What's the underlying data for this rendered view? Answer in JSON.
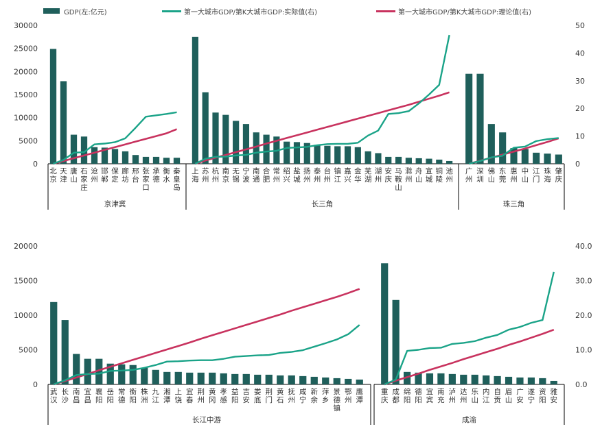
{
  "legend": {
    "bar": "GDP(左:亿元)",
    "actual": "第一大城市GDP/第K大城市GDP:实际值(右)",
    "theory": "第一大城市GDP/第K大城市GDP:理论值(右)"
  },
  "colors": {
    "bar": "#1f5f5b",
    "actual": "#1aa388",
    "theory": "#c8325e",
    "axis": "#000000",
    "text": "#333333"
  },
  "chart_data": [
    {
      "type": "bar+line",
      "panel": "top",
      "left_ticks": [
        "30000",
        "25000",
        "20000",
        "15000",
        "10000",
        "5000",
        "0"
      ],
      "right_ticks": [
        "50",
        "40",
        "30",
        "20",
        "10",
        "0"
      ],
      "ylim_left": [
        0,
        30000
      ],
      "ylim_right": [
        0,
        50
      ],
      "groups": [
        {
          "name": "京津冀",
          "cities": [
            [
              "北",
              "京"
            ],
            [
              "天",
              "津"
            ],
            [
              "唐",
              "山"
            ],
            [
              "石",
              "家",
              "庄"
            ],
            [
              "沧",
              "州"
            ],
            [
              "邯",
              "郸"
            ],
            [
              "保",
              "定"
            ],
            [
              "廊",
              "坊"
            ],
            [
              "邢",
              "台"
            ],
            [
              "张",
              "家",
              "口"
            ],
            [
              "承",
              "德"
            ],
            [
              "衡",
              "水"
            ],
            [
              "秦",
              "皇",
              "岛"
            ]
          ],
          "gdp": [
            24900,
            17900,
            6300,
            5900,
            3600,
            3500,
            3200,
            2700,
            1900,
            1500,
            1500,
            1300,
            1300
          ],
          "actual": [
            0,
            1.4,
            4,
            4.2,
            7,
            7.3,
            7.8,
            9.2,
            13,
            17,
            17.5,
            18,
            18.6
          ],
          "theory": [
            0,
            1,
            2,
            3,
            4,
            5,
            6,
            7,
            8,
            9,
            10,
            11,
            12.5
          ]
        },
        {
          "name": "长三角",
          "cities": [
            [
              "上",
              "海"
            ],
            [
              "苏",
              "州"
            ],
            [
              "杭",
              "州"
            ],
            [
              "南",
              "京"
            ],
            [
              "无",
              "锡"
            ],
            [
              "宁",
              "波"
            ],
            [
              "南",
              "通"
            ],
            [
              "合",
              "肥"
            ],
            [
              "常",
              "州"
            ],
            [
              "绍",
              "兴"
            ],
            [
              "盐",
              "城"
            ],
            [
              "扬",
              "州"
            ],
            [
              "泰",
              "州"
            ],
            [
              "台",
              "州"
            ],
            [
              "镇",
              "江"
            ],
            [
              "嘉",
              "兴"
            ],
            [
              "金",
              "华"
            ],
            [
              "芜",
              "湖"
            ],
            [
              "湖",
              "州"
            ],
            [
              "安",
              "庆"
            ],
            [
              "马",
              "鞍",
              "山"
            ],
            [
              "滁",
              "州"
            ],
            [
              "舟",
              "山"
            ],
            [
              "宣",
              "城"
            ],
            [
              "铜",
              "陵"
            ],
            [
              "池",
              "州"
            ]
          ],
          "gdp": [
            27500,
            15500,
            11100,
            10600,
            9300,
            8600,
            6800,
            6300,
            5900,
            4800,
            4700,
            4500,
            4100,
            3900,
            3800,
            3800,
            3600,
            2700,
            2300,
            1500,
            1500,
            1300,
            1200,
            1100,
            900,
            600
          ],
          "actual": [
            0,
            1.8,
            2.5,
            2.6,
            3,
            3.2,
            4,
            4.4,
            4.7,
            5.7,
            5.9,
            6.1,
            6.7,
            7.1,
            7.2,
            7.2,
            7.6,
            10.2,
            12,
            18,
            18.3,
            19,
            21.8,
            25,
            28.5,
            46.5
          ],
          "theory": [
            0,
            1.2,
            2.2,
            3.2,
            4.2,
            5.2,
            6.2,
            7.3,
            8.3,
            9.3,
            10.3,
            11.3,
            12.3,
            13.3,
            14.3,
            15.3,
            16.3,
            17.3,
            18.3,
            19.3,
            20.3,
            21.3,
            22.4,
            23.5,
            24.6,
            25.8
          ]
        },
        {
          "name": "珠三角",
          "cities": [
            [
              "广",
              "州"
            ],
            [
              "深",
              "圳"
            ],
            [
              "佛",
              "山"
            ],
            [
              "东",
              "莞"
            ],
            [
              "惠",
              "州"
            ],
            [
              "中",
              "山"
            ],
            [
              "江",
              "门"
            ],
            [
              "珠",
              "海"
            ],
            [
              "肇",
              "庆"
            ]
          ],
          "gdp": [
            19500,
            19500,
            8600,
            6800,
            3400,
            3200,
            2400,
            2200,
            2000
          ],
          "actual": [
            0,
            1,
            2.3,
            2.9,
            5.8,
            6.2,
            8.2,
            8.9,
            9.3
          ],
          "theory": [
            0,
            1.1,
            2.2,
            3.3,
            4.4,
            5.5,
            6.7,
            7.9,
            9.2
          ]
        }
      ]
    },
    {
      "type": "bar+line",
      "panel": "bottom-left",
      "left_ticks": [
        "20000",
        "15000",
        "10000",
        "5000",
        "0"
      ],
      "right_ticks": [],
      "ylim_left": [
        0,
        20000
      ],
      "ylim_right": [
        0,
        40
      ],
      "groups": [
        {
          "name": "长江中游",
          "cities": [
            [
              "武",
              "汉"
            ],
            [
              "长",
              "沙"
            ],
            [
              "南",
              "昌"
            ],
            [
              "宜",
              "昌"
            ],
            [
              "襄",
              "阳"
            ],
            [
              "岳",
              "阳"
            ],
            [
              "常",
              "德"
            ],
            [
              "衡",
              "阳"
            ],
            [
              "株",
              "洲"
            ],
            [
              "九",
              "江"
            ],
            [
              "湘",
              "潭"
            ],
            [
              "上",
              "饶"
            ],
            [
              "宜",
              "春"
            ],
            [
              "荆",
              "州"
            ],
            [
              "黄",
              "冈"
            ],
            [
              "孝",
              "感"
            ],
            [
              "益",
              "阳"
            ],
            [
              "吉",
              "安"
            ],
            [
              "娄",
              "底"
            ],
            [
              "荆",
              "门"
            ],
            [
              "黄",
              "石"
            ],
            [
              "抚",
              "州"
            ],
            [
              "咸",
              "宁"
            ],
            [
              "新",
              "余"
            ],
            [
              "萍",
              "乡"
            ],
            [
              "景",
              "德",
              "镇"
            ],
            [
              "鄂",
              "州"
            ],
            [
              "鹰",
              "潭"
            ]
          ],
          "gdp": [
            11900,
            9300,
            4400,
            3700,
            3700,
            3000,
            2900,
            2800,
            2400,
            2100,
            1800,
            1800,
            1700,
            1700,
            1700,
            1600,
            1500,
            1500,
            1400,
            1400,
            1300,
            1300,
            1200,
            1100,
            1000,
            900,
            800,
            700
          ],
          "actual": [
            0,
            1.2,
            2.7,
            3,
            3.1,
            3.9,
            4,
            4.2,
            4.8,
            5.6,
            6.6,
            6.7,
            6.9,
            7,
            7,
            7.4,
            8,
            8.2,
            8.4,
            8.5,
            9.1,
            9.4,
            9.9,
            10.9,
            11.9,
            13,
            14.5,
            17.2
          ],
          "theory": [
            0,
            1,
            2,
            3,
            4.1,
            5.1,
            6.1,
            7.1,
            8.1,
            9.1,
            10.1,
            11.1,
            12.1,
            13.2,
            14.2,
            15.2,
            16.2,
            17.2,
            18.2,
            19.2,
            20.2,
            21.3,
            22.3,
            23.3,
            24.3,
            25.3,
            26.4,
            27.6
          ]
        }
      ]
    },
    {
      "type": "bar+line",
      "panel": "bottom-right",
      "left_ticks": [],
      "right_ticks": [
        "40.0",
        "30.0",
        "20.0",
        "10.0",
        "0.0"
      ],
      "ylim_left": [
        0,
        20000
      ],
      "ylim_right": [
        0,
        40
      ],
      "groups": [
        {
          "name": "成渝",
          "cities": [
            [
              "重",
              "庆"
            ],
            [
              "成",
              "都"
            ],
            [
              "绵",
              "阳"
            ],
            [
              "德",
              "阳"
            ],
            [
              "宜",
              "宾"
            ],
            [
              "南",
              "充"
            ],
            [
              "泸",
              "州"
            ],
            [
              "达",
              "州"
            ],
            [
              "乐",
              "山"
            ],
            [
              "内",
              "江"
            ],
            [
              "自",
              "贡"
            ],
            [
              "眉",
              "山"
            ],
            [
              "广",
              "安"
            ],
            [
              "遂",
              "宁"
            ],
            [
              "资",
              "阳"
            ],
            [
              "雅",
              "安"
            ]
          ],
          "gdp": [
            17500,
            12200,
            1800,
            1700,
            1600,
            1600,
            1500,
            1400,
            1400,
            1300,
            1200,
            1100,
            1000,
            1000,
            900,
            500
          ],
          "actual": [
            0,
            1.4,
            9.7,
            10,
            10.5,
            10.6,
            11.7,
            12,
            12.5,
            13.5,
            14.3,
            15.8,
            16.6,
            17.8,
            18.6,
            32.5
          ],
          "theory": [
            0,
            1.1,
            2.1,
            3.1,
            4.2,
            5.2,
            6.2,
            7.3,
            8.3,
            9.3,
            10.3,
            11.4,
            12.4,
            13.5,
            14.6,
            15.8
          ]
        }
      ]
    }
  ]
}
